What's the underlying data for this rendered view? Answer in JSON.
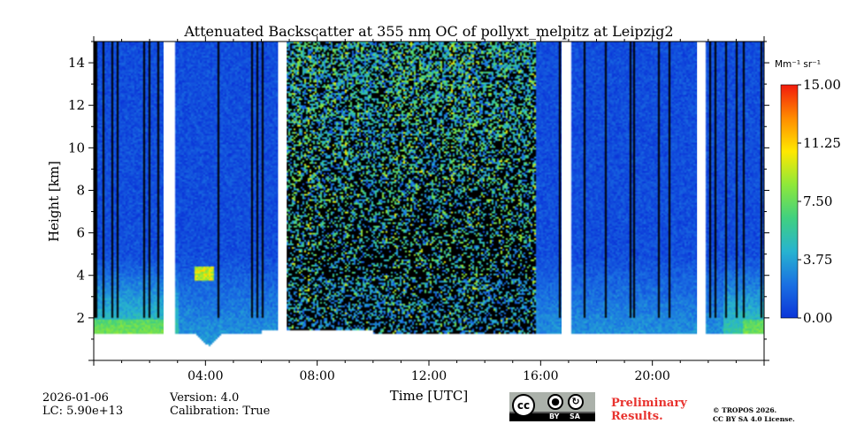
{
  "chart_data": {
    "type": "heatmap",
    "title": "Attenuated Backscatter at 355 nm OC of pollyxt_melpitz at Leipzig2",
    "xlabel": "Time [UTC]",
    "ylabel": "Height [km]",
    "xlim": [
      0,
      24
    ],
    "ylim": [
      0,
      15
    ],
    "x_ticks": [
      {
        "value": 4,
        "label": "04:00"
      },
      {
        "value": 8,
        "label": "08:00"
      },
      {
        "value": 12,
        "label": "12:00"
      },
      {
        "value": 16,
        "label": "16:00"
      },
      {
        "value": 20,
        "label": "20:00"
      }
    ],
    "y_ticks": [
      {
        "value": 2,
        "label": "2"
      },
      {
        "value": 4,
        "label": "4"
      },
      {
        "value": 6,
        "label": "6"
      },
      {
        "value": 8,
        "label": "8"
      },
      {
        "value": 10,
        "label": "10"
      },
      {
        "value": 12,
        "label": "12"
      },
      {
        "value": 14,
        "label": "14"
      }
    ],
    "colorbar": {
      "unit_label": "Mm⁻¹ sr⁻¹",
      "range": [
        0,
        15
      ],
      "ticks": [
        {
          "value": 0,
          "label": "0.00"
        },
        {
          "value": 3.75,
          "label": "3.75"
        },
        {
          "value": 7.5,
          "label": "7.50"
        },
        {
          "value": 11.25,
          "label": "11.25"
        },
        {
          "value": 15,
          "label": "15.00"
        }
      ],
      "colormap": [
        "#0b35d8",
        "#1a70e2",
        "#27b3d0",
        "#40d080",
        "#8ee83a",
        "#ffe800",
        "#ff8c00",
        "#f21b0c"
      ]
    },
    "no_data_gaps_hours": [
      [
        2.5,
        2.85
      ],
      [
        6.6,
        6.9
      ],
      [
        16.75,
        17.05
      ],
      [
        21.6,
        21.85
      ]
    ],
    "surface_signal_cutoff_km": 1.3,
    "high_noise_period_hours": [
      6.9,
      15.8
    ]
  },
  "footer": {
    "date": "2026-01-06",
    "lidar_constant": "LC: 5.90e+13",
    "version": "Version: 4.0",
    "calibration": "Calibration: True",
    "cc_by": "BY",
    "cc_sa": "SA",
    "cc_text": "cc",
    "preliminary": "Preliminary Results.",
    "copyright_line1": "© TROPOS 2026.",
    "copyright_line2": "CC BY SA 4.0 License."
  }
}
